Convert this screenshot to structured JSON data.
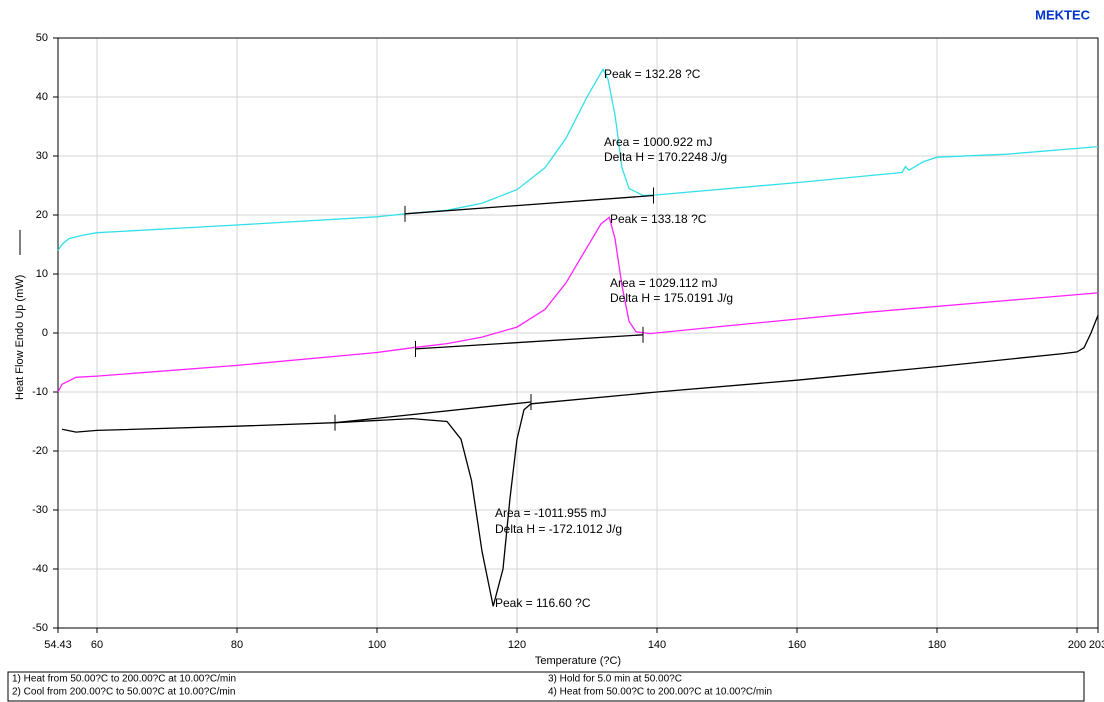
{
  "header": "MEKTEC",
  "chart_data": {
    "type": "line",
    "xlabel": "Temperature (?C)",
    "ylabel": "Heat Flow Endo Up (mW)",
    "xlim": [
      54.43,
      203
    ],
    "xticks": [
      54.43,
      60,
      80,
      100,
      120,
      140,
      160,
      180,
      200,
      203
    ],
    "ylim": [
      -50,
      50
    ],
    "yticks": [
      -50,
      -40,
      -30,
      -20,
      -10,
      0,
      10,
      20,
      30,
      40,
      50
    ],
    "grid": true,
    "series": [
      {
        "color": "#33e0e8",
        "x": [
          54.43,
          55,
          56,
          58,
          60,
          80,
          100,
          104,
          110,
          115,
          120,
          124,
          127,
          130,
          132.28,
          133,
          134,
          135,
          136,
          138,
          140,
          160,
          175,
          175.5,
          176,
          178,
          180,
          190,
          203
        ],
        "values": [
          14,
          15,
          16,
          16.6,
          17,
          18.3,
          19.7,
          20.2,
          20.8,
          22,
          24.3,
          28,
          33,
          40,
          44.7,
          43,
          37,
          28,
          24.5,
          23.3,
          23.4,
          25.5,
          27.2,
          28.2,
          27.6,
          29,
          29.8,
          30.3,
          31.6
        ]
      },
      {
        "color": "#ff22ff",
        "x": [
          54.43,
          55,
          57,
          60,
          80,
          100,
          105,
          110,
          115,
          120,
          124,
          127,
          130,
          132,
          133.18,
          134,
          135,
          136,
          137,
          139,
          150,
          170,
          190,
          203
        ],
        "values": [
          -10,
          -8.7,
          -7.5,
          -7.3,
          -5.5,
          -3.3,
          -2.5,
          -1.8,
          -0.7,
          1,
          4,
          8.5,
          14.5,
          18.5,
          19.6,
          16,
          8,
          2,
          0.2,
          -0.1,
          1.2,
          3.5,
          5.5,
          6.8
        ]
      },
      {
        "color": "#000000",
        "x": [
          55,
          57,
          60,
          80,
          94,
          105,
          110,
          112,
          113.5,
          115,
          116.6,
          118,
          119,
          120,
          121,
          122,
          140,
          160,
          180,
          198,
          200,
          201,
          202,
          203
        ],
        "values": [
          -16.3,
          -16.8,
          -16.5,
          -15.8,
          -15.2,
          -14.5,
          -15,
          -18,
          -25,
          -37,
          -46.3,
          -40,
          -28,
          -18,
          -13,
          -12,
          -10,
          -8,
          -5.7,
          -3.5,
          -3.2,
          -2.5,
          0,
          3
        ]
      },
      {
        "color": "#000000",
        "x": [
          104,
          139.5
        ],
        "values": [
          20.2,
          23.3
        ]
      },
      {
        "color": "#000000",
        "x": [
          105.5,
          138
        ],
        "values": [
          -2.7,
          -0.3
        ]
      },
      {
        "color": "#000000",
        "x": [
          94,
          122
        ],
        "values": [
          -15.2,
          -11.7
        ]
      }
    ],
    "annotations": [
      "Peak = 132.28 ?C",
      "Area = 1000.922 mJ",
      "Delta H = 170.2248 J/g",
      "Peak = 133.18 ?C",
      "Area = 1029.112 mJ",
      "Delta H = 175.0191 J/g",
      "Area = -1011.955 mJ",
      "Delta H = -172.1012 J/g",
      "Peak = 116.60 ?C"
    ]
  },
  "method": [
    "1)  Heat from 50.00?C to 200.00?C at 10.00?C/min",
    "2)  Cool from 200.00?C to 50.00?C at 10.00?C/min",
    "3)  Hold for 5.0 min at 50.00?C",
    "4)  Heat from 50.00?C to 200.00?C at 10.00?C/min"
  ]
}
